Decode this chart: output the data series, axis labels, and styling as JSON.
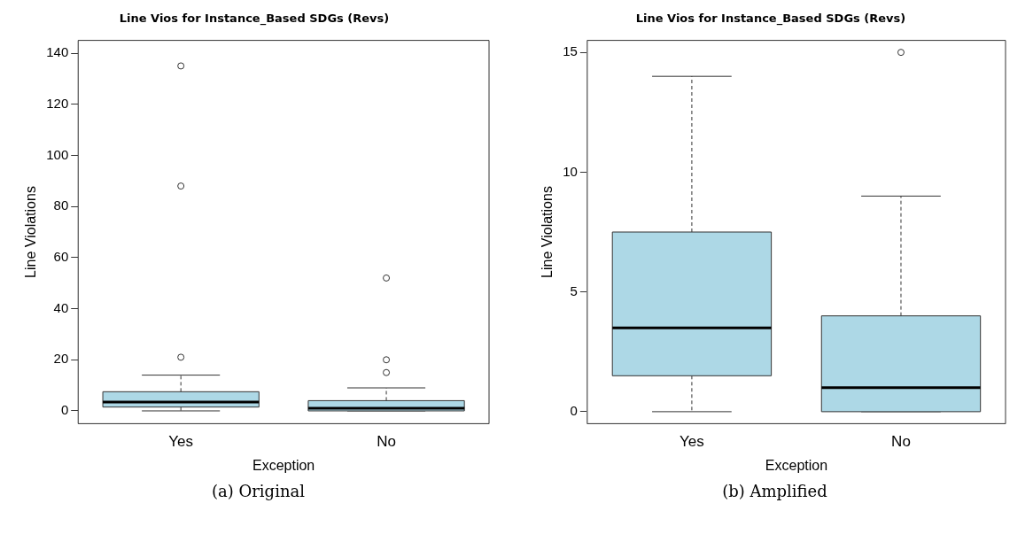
{
  "chart_data": [
    {
      "type": "box",
      "title": "Line Vios for Instance_Based SDGs (Revs)",
      "xlabel": "Exception",
      "ylabel": "Line Violations",
      "categories": [
        "Yes",
        "No"
      ],
      "color": "#add8e6",
      "ylim": [
        -5,
        145
      ],
      "yticks": [
        0,
        20,
        40,
        60,
        80,
        100,
        120,
        140
      ],
      "grid": false,
      "legend": false,
      "boxes": [
        {
          "low": 0,
          "q1": 1.5,
          "median": 3.5,
          "q3": 7.5,
          "high": 14,
          "outliers": [
            21,
            88,
            135
          ]
        },
        {
          "low": 0,
          "q1": 0,
          "median": 1,
          "q3": 4,
          "high": 9,
          "outliers": [
            15,
            20,
            52
          ]
        }
      ],
      "annotations": [
        "(a) Original"
      ]
    },
    {
      "type": "box",
      "title": "Line Vios for Instance_Based SDGs (Revs)",
      "xlabel": "Exception",
      "ylabel": "Line Violations",
      "categories": [
        "Yes",
        "No"
      ],
      "color": "#add8e6",
      "ylim": [
        -0.5,
        15.5
      ],
      "yticks": [
        0,
        5,
        10,
        15
      ],
      "grid": false,
      "legend": false,
      "boxes": [
        {
          "low": 0,
          "q1": 1.5,
          "median": 3.5,
          "q3": 7.5,
          "high": 14
        },
        {
          "low": 0,
          "q1": 0,
          "median": 1,
          "q3": 4,
          "high": 9,
          "outliers": [
            15
          ]
        }
      ],
      "annotations": [
        "(b) Amplified"
      ]
    }
  ]
}
